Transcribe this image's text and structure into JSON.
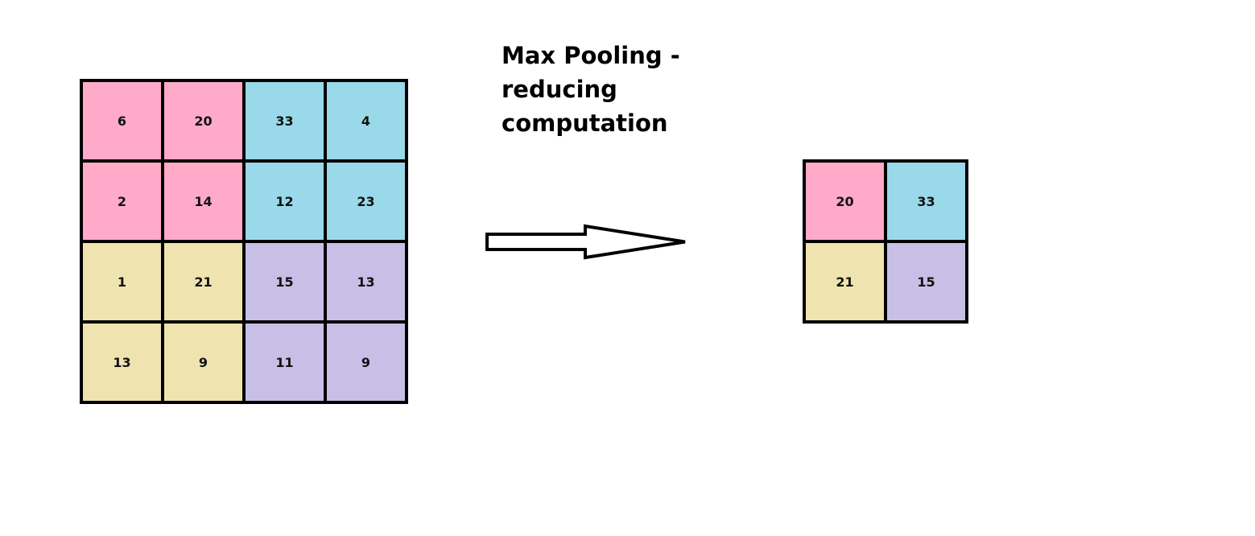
{
  "title": {
    "line1": "Max Pooling -",
    "line2": "reducing",
    "line3": "computation"
  },
  "colors": {
    "pink": "#ffaac9",
    "blue": "#99d9ea",
    "yellow": "#efe4b0",
    "purple": "#c8bfe7",
    "border": "#000000"
  },
  "input_matrix": [
    [
      {
        "value": "6",
        "color": "pink"
      },
      {
        "value": "20",
        "color": "pink"
      },
      {
        "value": "33",
        "color": "blue"
      },
      {
        "value": "4",
        "color": "blue"
      }
    ],
    [
      {
        "value": "2",
        "color": "pink"
      },
      {
        "value": "14",
        "color": "pink"
      },
      {
        "value": "12",
        "color": "blue"
      },
      {
        "value": "23",
        "color": "blue"
      }
    ],
    [
      {
        "value": "1",
        "color": "yellow"
      },
      {
        "value": "21",
        "color": "yellow"
      },
      {
        "value": "15",
        "color": "purple"
      },
      {
        "value": "13",
        "color": "purple"
      }
    ],
    [
      {
        "value": "13",
        "color": "yellow"
      },
      {
        "value": "9",
        "color": "yellow"
      },
      {
        "value": "11",
        "color": "purple"
      },
      {
        "value": "9",
        "color": "purple"
      }
    ]
  ],
  "output_matrix": [
    [
      {
        "value": "20",
        "color": "pink"
      },
      {
        "value": "33",
        "color": "blue"
      }
    ],
    [
      {
        "value": "21",
        "color": "yellow"
      },
      {
        "value": "15",
        "color": "purple"
      }
    ]
  ],
  "arrow_icon": "right-arrow-icon"
}
